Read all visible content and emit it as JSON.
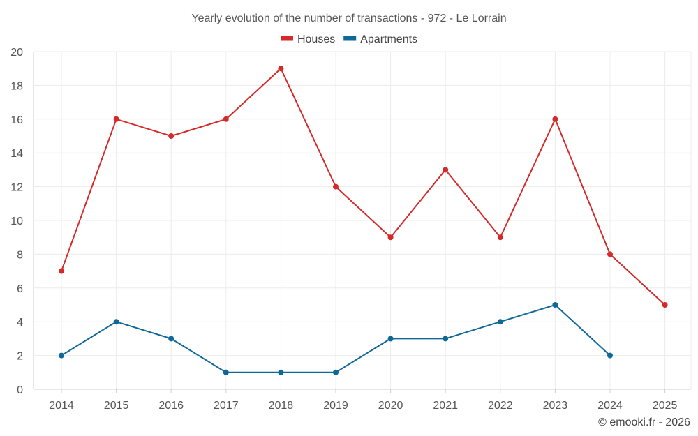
{
  "chart_data": {
    "type": "line",
    "title": "Yearly evolution of the number of transactions - 972 - Le Lorrain",
    "xlabel": "",
    "ylabel": "",
    "categories": [
      "2014",
      "2015",
      "2016",
      "2017",
      "2018",
      "2019",
      "2020",
      "2021",
      "2022",
      "2023",
      "2024",
      "2025"
    ],
    "ylim": [
      0,
      20
    ],
    "yticks": [
      0,
      2,
      4,
      6,
      8,
      10,
      12,
      14,
      16,
      18,
      20
    ],
    "grid": true,
    "legend_position": "top-center",
    "series": [
      {
        "name": "Houses",
        "color": "#d42a2a",
        "values": [
          7,
          16,
          15,
          16,
          19,
          12,
          9,
          13,
          9,
          16,
          8,
          5
        ]
      },
      {
        "name": "Apartments",
        "color": "#0f6898",
        "values": [
          2,
          4,
          3,
          1,
          1,
          1,
          3,
          3,
          4,
          5,
          2,
          null
        ]
      }
    ]
  },
  "credit": "© emooki.fr - 2026"
}
